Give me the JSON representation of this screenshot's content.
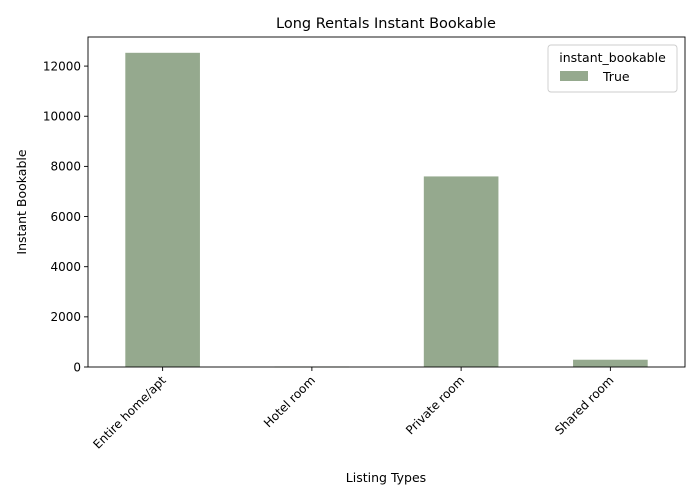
{
  "chart_data": {
    "type": "bar",
    "title": "Long Rentals Instant Bookable",
    "xlabel": "Listing Types",
    "ylabel": "Instant Bookable",
    "categories": [
      "Entire home/apt",
      "Hotel room",
      "Private room",
      "Shared room"
    ],
    "series": [
      {
        "name": "True",
        "values": [
          12530,
          20,
          7600,
          290
        ],
        "color": "#95a98e"
      }
    ],
    "yticks": [
      0,
      2000,
      4000,
      6000,
      8000,
      10000,
      12000
    ],
    "ylim": [
      0,
      13160
    ],
    "grid": false,
    "legend": {
      "title": "instant_bookable",
      "placement": "top-right"
    }
  }
}
